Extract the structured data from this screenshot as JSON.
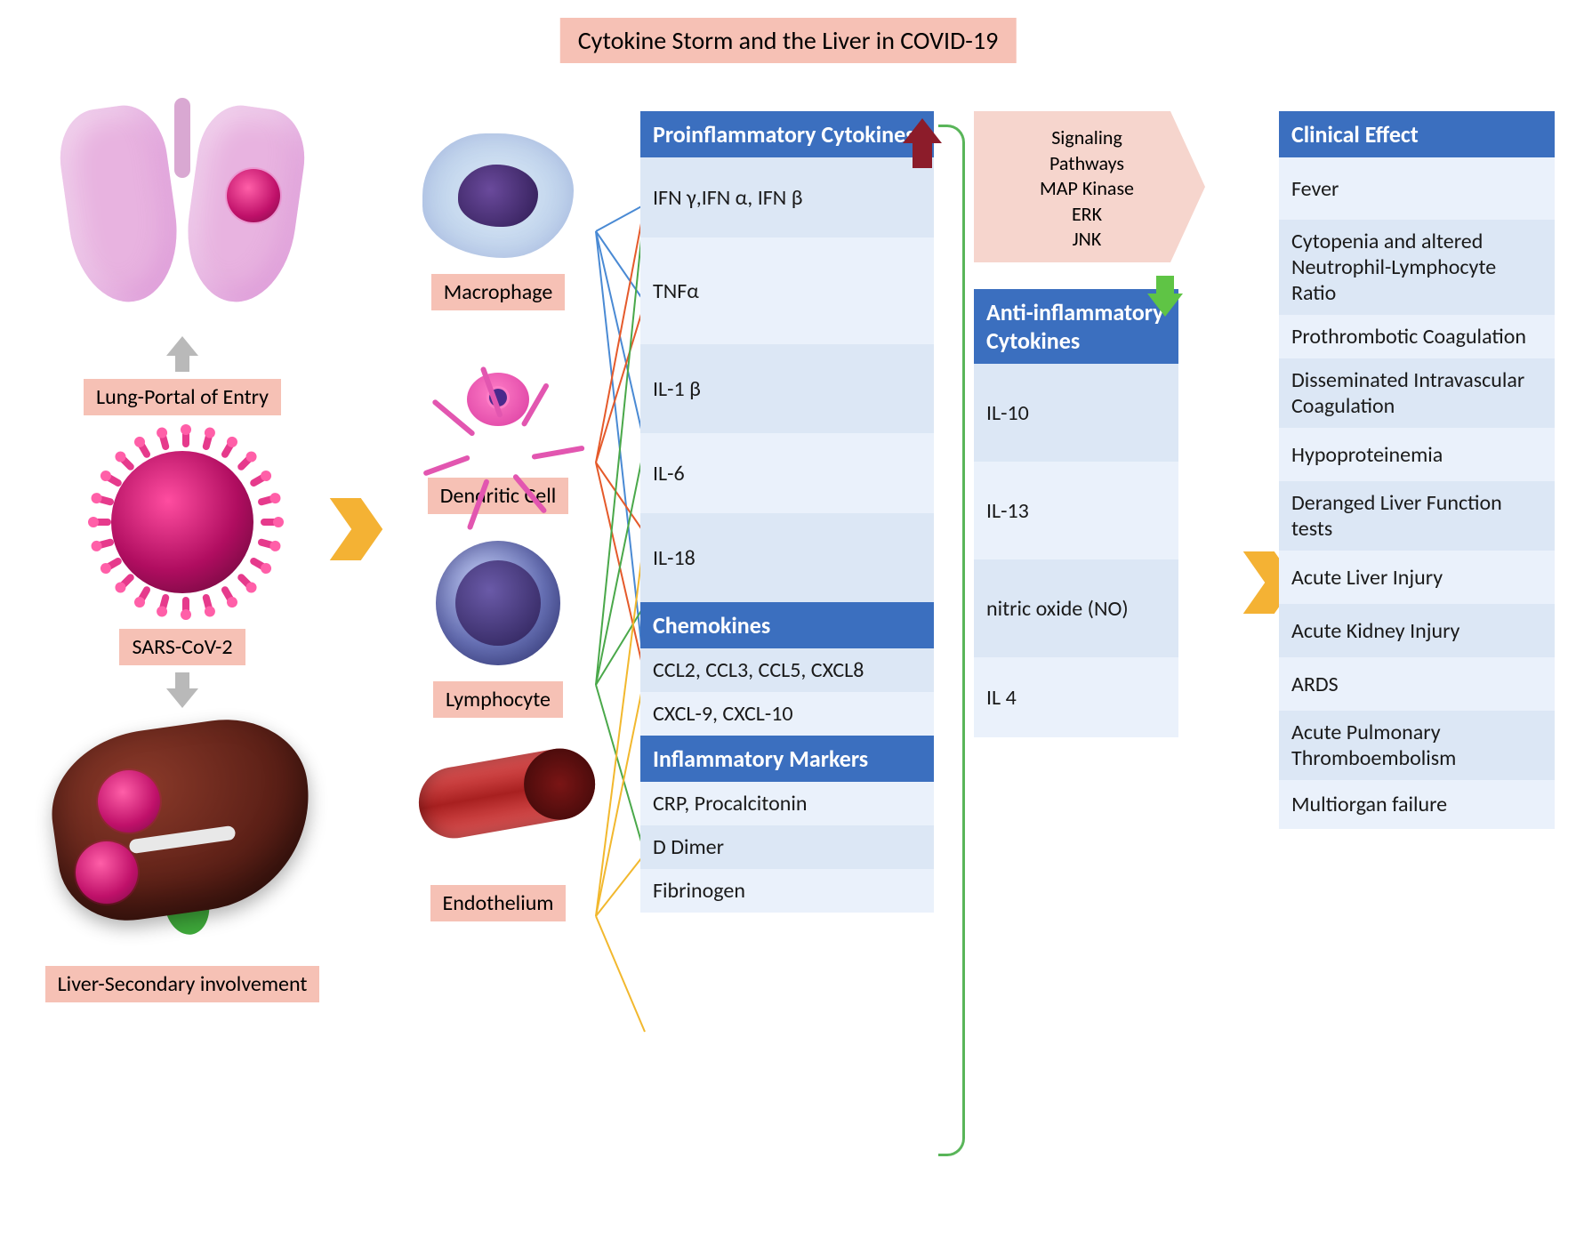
{
  "title": "Cytokine Storm and the Liver in COVID-19",
  "labels": {
    "lung": "Lung-Portal of Entry",
    "virus": "SARS-CoV-2",
    "liver": "Liver-Secondary involvement",
    "macrophage": "Macrophage",
    "dendritic": "Dendritic Cell",
    "lymphocyte": "Lymphocyte",
    "endothelium": "Endothelium"
  },
  "signaling": {
    "l1": "Signaling",
    "l2": "Pathways",
    "l3": "MAP Kinase",
    "l4": "ERK",
    "l5": "JNK"
  },
  "pro_header": "Proinflammatory Cytokines",
  "pro": {
    "r1": "IFN γ,IFN α, IFN β",
    "r2": "TNFα",
    "r3": "IL-1 β",
    "r4": "IL-6",
    "r5": "IL-18"
  },
  "chemo_header": "Chemokines",
  "chemo": {
    "r1": "CCL2, CCL3, CCL5, CXCL8",
    "r2": "CXCL-9, CXCL-10"
  },
  "inflam_header": "Inflammatory Markers",
  "inflam": {
    "r1": "CRP, Procalcitonin",
    "r2": "D Dimer",
    "r3": "Fibrinogen"
  },
  "anti_header": "Anti-inflammatory Cytokines",
  "anti": {
    "r1": "IL-10",
    "r2": "IL-13",
    "r3": "nitric oxide (NO)",
    "r4": "IL 4"
  },
  "clin_header": "Clinical Effect",
  "clin": {
    "r1": "Fever",
    "r2": "Cytopenia and altered Neutrophil-Lymphocyte Ratio",
    "r3": "Prothrombotic Coagulation",
    "r4": "Disseminated Intravascular Coagulation",
    "r5": "Hypoproteinemia",
    "r6": "Deranged Liver Function tests",
    "r7": "Acute Liver Injury",
    "r8": "Acute Kidney Injury",
    "r9": "ARDS",
    "r10": "Acute Pulmonary Thromboembolism",
    "r11": "Multiorgan failure"
  },
  "colors": {
    "label_bg": "#f6c1b5",
    "table_header": "#3b6fbf",
    "row_a": "#dce7f5",
    "row_b": "#eaf1fb",
    "chevron": "#f4b234",
    "arrow_up": "#8c1c2a",
    "arrow_down": "#5fc445",
    "bracket": "#59b559",
    "signaling_bg": "#f6d5cd",
    "line_macro": "#4a8ad4",
    "line_dend": "#e55a2b",
    "line_lymph": "#4aa84a",
    "line_endo": "#f2b82e"
  }
}
